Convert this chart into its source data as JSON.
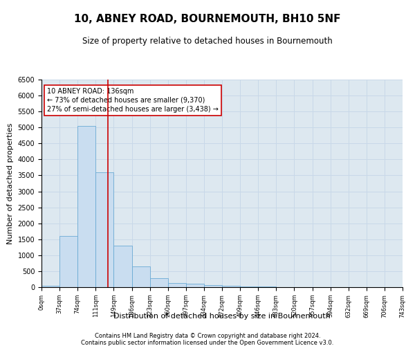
{
  "title": "10, ABNEY ROAD, BOURNEMOUTH, BH10 5NF",
  "subtitle": "Size of property relative to detached houses in Bournemouth",
  "xlabel": "Distribution of detached houses by size in Bournemouth",
  "ylabel": "Number of detached properties",
  "footer1": "Contains HM Land Registry data © Crown copyright and database right 2024.",
  "footer2": "Contains public sector information licensed under the Open Government Licence v3.0.",
  "bins": [
    "0sqm",
    "37sqm",
    "74sqm",
    "111sqm",
    "149sqm",
    "186sqm",
    "223sqm",
    "260sqm",
    "297sqm",
    "334sqm",
    "372sqm",
    "409sqm",
    "446sqm",
    "483sqm",
    "520sqm",
    "557sqm",
    "594sqm",
    "632sqm",
    "669sqm",
    "706sqm",
    "743sqm"
  ],
  "bar_heights": [
    50,
    1600,
    5050,
    3600,
    1300,
    650,
    280,
    130,
    100,
    75,
    50,
    30,
    20,
    10,
    5,
    2,
    0,
    0,
    0,
    0
  ],
  "bar_color": "#c9ddf0",
  "bar_edge_color": "#6aaad4",
  "property_line_x": 3.675,
  "property_line_color": "#cc0000",
  "annotation_text": "10 ABNEY ROAD: 136sqm\n← 73% of detached houses are smaller (9,370)\n27% of semi-detached houses are larger (3,438) →",
  "annotation_box_color": "#ffffff",
  "annotation_box_edge": "#cc0000",
  "ylim": [
    0,
    6500
  ],
  "yticks": [
    0,
    500,
    1000,
    1500,
    2000,
    2500,
    3000,
    3500,
    4000,
    4500,
    5000,
    5500,
    6000,
    6500
  ],
  "grid_color": "#c8d8e8",
  "background_color": "#dde8f0"
}
